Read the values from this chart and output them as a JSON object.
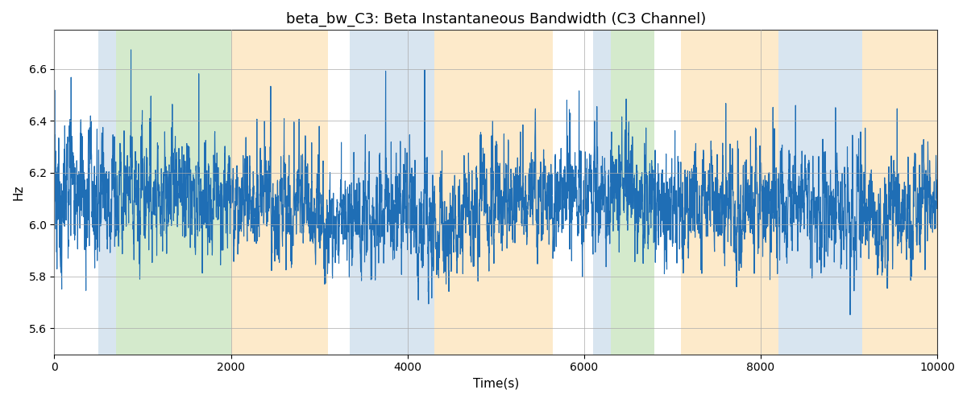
{
  "title": "beta_bw_C3: Beta Instantaneous Bandwidth (C3 Channel)",
  "xlabel": "Time(s)",
  "ylabel": "Hz",
  "xlim": [
    0,
    10000
  ],
  "ylim": [
    5.5,
    6.75
  ],
  "line_color": "#1f6eb5",
  "line_width": 0.8,
  "bg_color": "#ffffff",
  "grid_color": "#aaaaaa",
  "bands": [
    {
      "xmin": 500,
      "xmax": 700,
      "color": "#b3cde3",
      "alpha": 0.5
    },
    {
      "xmin": 700,
      "xmax": 2000,
      "color": "#8ec97a",
      "alpha": 0.38
    },
    {
      "xmin": 2000,
      "xmax": 3100,
      "color": "#fdd9a0",
      "alpha": 0.55
    },
    {
      "xmin": 3350,
      "xmax": 4300,
      "color": "#b3cde3",
      "alpha": 0.5
    },
    {
      "xmin": 4300,
      "xmax": 5650,
      "color": "#fdd9a0",
      "alpha": 0.55
    },
    {
      "xmin": 6100,
      "xmax": 6300,
      "color": "#b3cde3",
      "alpha": 0.5
    },
    {
      "xmin": 6300,
      "xmax": 6800,
      "color": "#8ec97a",
      "alpha": 0.38
    },
    {
      "xmin": 7100,
      "xmax": 8200,
      "color": "#fdd9a0",
      "alpha": 0.55
    },
    {
      "xmin": 8200,
      "xmax": 9150,
      "color": "#b3cde3",
      "alpha": 0.5
    },
    {
      "xmin": 9150,
      "xmax": 10000,
      "color": "#fdd9a0",
      "alpha": 0.55
    }
  ],
  "title_fontsize": 13,
  "axis_fontsize": 11,
  "seed": 1234,
  "n_points": 5000
}
